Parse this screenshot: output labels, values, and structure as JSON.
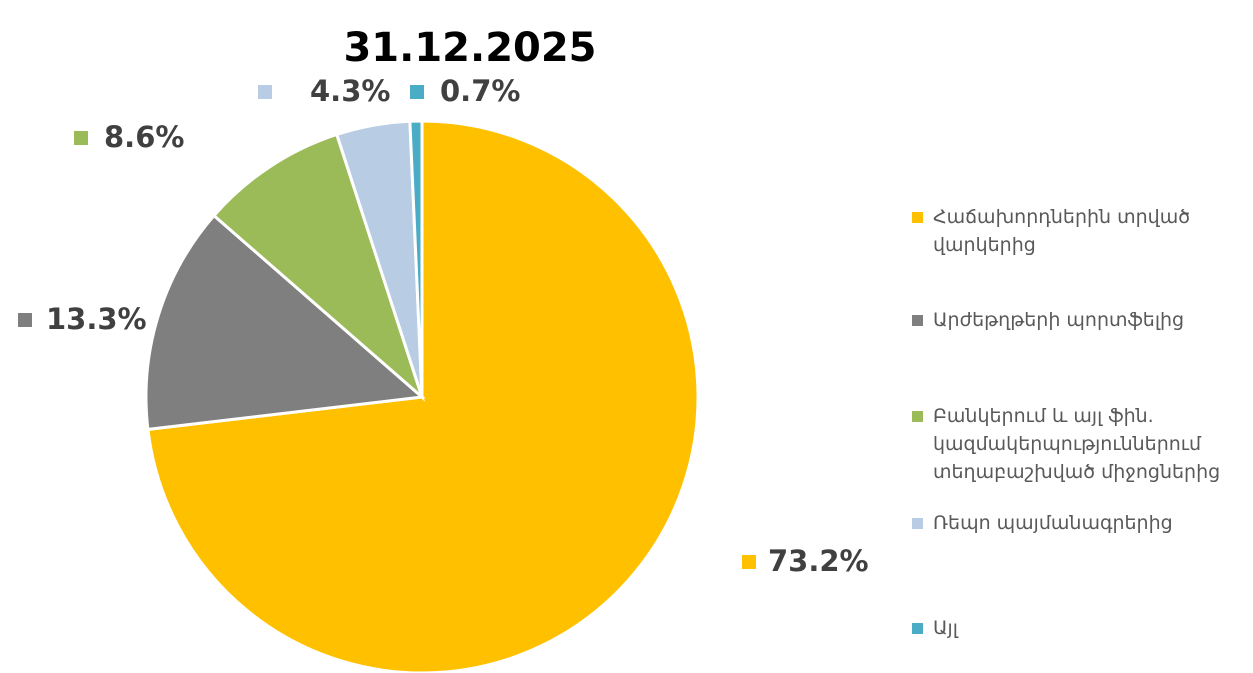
{
  "chart_data": {
    "type": "pie",
    "title": "31.12.2025",
    "categories": [
      "Հաճախորդներին տրված վարկերից",
      "Արժեթղթերի պորտֆելից",
      "Բանկերում և այլ ֆին. կազմակերպություններում տեղաբաշխված միջոցներից",
      "Ռեպո պայմանագրերից",
      "Այլ"
    ],
    "values": [
      73.2,
      13.3,
      8.6,
      4.3,
      0.7
    ],
    "value_labels": [
      "73.2%",
      "13.3%",
      "8.6%",
      "4.3%",
      "0.7%"
    ],
    "colors": [
      "#FFC000",
      "#7F7F7F",
      "#9BBB59",
      "#B8CCE4",
      "#4BACC6"
    ],
    "legend": "right"
  }
}
